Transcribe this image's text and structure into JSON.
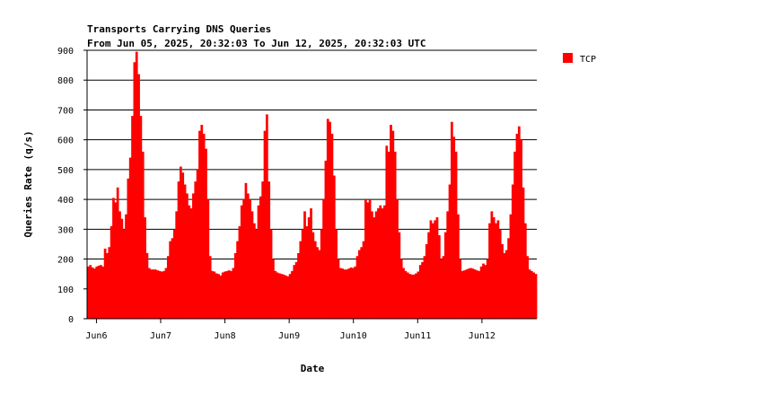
{
  "chart_data": {
    "type": "bar",
    "title": "Transports Carrying DNS Queries",
    "subtitle": "From Jun 05, 2025, 20:32:03 To Jun 12, 2025, 20:32:03 UTC",
    "xlabel": "Date",
    "ylabel": "Queries Rate (q/s)",
    "ylim": [
      0,
      900
    ],
    "yticks": [
      0,
      100,
      200,
      300,
      400,
      500,
      600,
      700,
      800,
      900
    ],
    "grid": true,
    "legend_position": "top-right",
    "x_ticks": [
      {
        "label": "Jun6",
        "hour": 3.5
      },
      {
        "label": "Jun7",
        "hour": 27.5
      },
      {
        "label": "Jun8",
        "hour": 51.5
      },
      {
        "label": "Jun9",
        "hour": 75.5
      },
      {
        "label": "Jun10",
        "hour": 99.5
      },
      {
        "label": "Jun11",
        "hour": 123.5
      },
      {
        "label": "Jun12",
        "hour": 147.5
      }
    ],
    "x_range_hours": [
      0,
      168
    ],
    "series": [
      {
        "name": "TCP",
        "color": "#ff0000",
        "values": [
          175,
          180,
          172,
          168,
          175,
          178,
          180,
          175,
          235,
          220,
          240,
          310,
          405,
          390,
          440,
          360,
          335,
          300,
          350,
          470,
          540,
          680,
          860,
          895,
          820,
          680,
          560,
          340,
          220,
          170,
          165,
          165,
          165,
          162,
          160,
          158,
          160,
          170,
          210,
          260,
          270,
          300,
          360,
          460,
          510,
          490,
          450,
          420,
          380,
          370,
          420,
          460,
          500,
          630,
          650,
          620,
          570,
          400,
          210,
          160,
          158,
          152,
          150,
          145,
          155,
          158,
          160,
          162,
          160,
          170,
          220,
          260,
          310,
          380,
          400,
          455,
          420,
          400,
          360,
          320,
          300,
          380,
          410,
          460,
          630,
          685,
          460,
          300,
          200,
          160,
          155,
          152,
          150,
          148,
          145,
          142,
          150,
          160,
          180,
          190,
          220,
          260,
          300,
          360,
          310,
          340,
          370,
          290,
          260,
          240,
          230,
          300,
          400,
          530,
          670,
          660,
          620,
          480,
          300,
          200,
          170,
          168,
          165,
          165,
          168,
          172,
          170,
          175,
          210,
          230,
          240,
          260,
          400,
          390,
          400,
          360,
          340,
          360,
          370,
          380,
          370,
          380,
          580,
          560,
          650,
          630,
          560,
          400,
          290,
          200,
          170,
          160,
          155,
          150,
          148,
          148,
          152,
          158,
          180,
          190,
          210,
          250,
          290,
          330,
          320,
          330,
          340,
          280,
          200,
          210,
          290,
          360,
          450,
          660,
          610,
          560,
          350,
          200,
          160,
          162,
          165,
          168,
          170,
          168,
          165,
          162,
          160,
          175,
          185,
          180,
          200,
          320,
          360,
          340,
          320,
          330,
          300,
          250,
          220,
          230,
          270,
          350,
          450,
          560,
          620,
          645,
          600,
          440,
          320,
          210,
          165,
          160,
          155,
          150
        ]
      }
    ]
  }
}
